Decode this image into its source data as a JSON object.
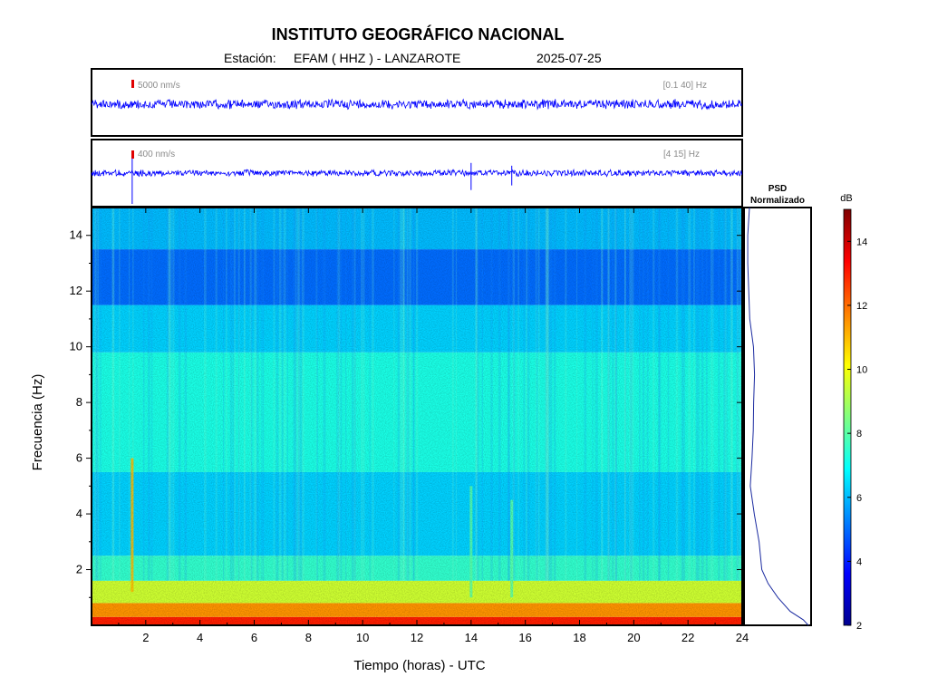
{
  "header": {
    "title": "INSTITUTO GEOGRÁFICO NACIONAL",
    "station_label": "Estación:",
    "station": "EFAM ( HHZ ) - LANZAROTE",
    "date": "2025-07-25"
  },
  "chart_data": {
    "type": "heatmap",
    "title": "INSTITUTO GEOGRÁFICO NACIONAL",
    "xlabel": "Tiempo (horas) - UTC",
    "ylabel": "Frecuencia  (Hz)",
    "xlim": [
      0,
      24
    ],
    "ylim": [
      0,
      15
    ],
    "xticks": [
      2,
      4,
      6,
      8,
      10,
      12,
      14,
      16,
      18,
      20,
      22,
      24
    ],
    "yticks": [
      2,
      4,
      6,
      8,
      10,
      12,
      14
    ],
    "grid": false,
    "colorbar": {
      "label": "dB",
      "range": [
        2,
        15
      ],
      "ticks": [
        2,
        4,
        6,
        8,
        10,
        12,
        14
      ],
      "colormap": [
        "#00008f",
        "#0000ff",
        "#0080ff",
        "#00ffff",
        "#80ff80",
        "#ffff00",
        "#ff8000",
        "#ff0000",
        "#800000"
      ]
    },
    "spectrogram_levels": [
      {
        "freq_from": 0.0,
        "freq_to": 0.3,
        "db": 13.0
      },
      {
        "freq_from": 0.3,
        "freq_to": 0.8,
        "db": 11.5
      },
      {
        "freq_from": 0.8,
        "freq_to": 1.6,
        "db": 9.5
      },
      {
        "freq_from": 1.6,
        "freq_to": 2.5,
        "db": 7.5
      },
      {
        "freq_from": 2.5,
        "freq_to": 5.5,
        "db": 6.3
      },
      {
        "freq_from": 5.5,
        "freq_to": 9.8,
        "db": 7.2
      },
      {
        "freq_from": 9.8,
        "freq_to": 11.5,
        "db": 6.3
      },
      {
        "freq_from": 11.5,
        "freq_to": 13.5,
        "db": 5.0
      },
      {
        "freq_from": 13.5,
        "freq_to": 15.0,
        "db": 6.0
      }
    ],
    "events": [
      {
        "time": 1.5,
        "freq_from": 1.2,
        "freq_to": 6.0,
        "db": 11
      },
      {
        "time": 14.0,
        "freq_from": 1.0,
        "freq_to": 5.0,
        "db": 8
      },
      {
        "time": 15.5,
        "freq_from": 1.0,
        "freq_to": 4.5,
        "db": 8
      }
    ],
    "psd_panel": {
      "title_line1": "PSD",
      "title_line2": "Normalizado",
      "profile": [
        {
          "freq": 0.0,
          "value": 0.98
        },
        {
          "freq": 0.2,
          "value": 0.9
        },
        {
          "freq": 0.5,
          "value": 0.7
        },
        {
          "freq": 1.0,
          "value": 0.5
        },
        {
          "freq": 1.5,
          "value": 0.35
        },
        {
          "freq": 2.0,
          "value": 0.26
        },
        {
          "freq": 3.0,
          "value": 0.2
        },
        {
          "freq": 4.0,
          "value": 0.14
        },
        {
          "freq": 5.0,
          "value": 0.08
        },
        {
          "freq": 6.0,
          "value": 0.1
        },
        {
          "freq": 7.0,
          "value": 0.12
        },
        {
          "freq": 8.0,
          "value": 0.13
        },
        {
          "freq": 9.0,
          "value": 0.14
        },
        {
          "freq": 10.0,
          "value": 0.12
        },
        {
          "freq": 11.0,
          "value": 0.06
        },
        {
          "freq": 12.0,
          "value": 0.04
        },
        {
          "freq": 13.0,
          "value": 0.03
        },
        {
          "freq": 14.0,
          "value": 0.04
        },
        {
          "freq": 15.0,
          "value": 0.05
        }
      ]
    },
    "traces": [
      {
        "scale_label": "5000 nm/s",
        "band_label": "[0.1 40] Hz",
        "spikes": []
      },
      {
        "scale_label": "400 nm/s",
        "band_label": "[4 15] Hz",
        "spikes": [
          {
            "time": 1.5,
            "amp": 1.0
          },
          {
            "time": 14.0,
            "amp": 0.55
          },
          {
            "time": 15.5,
            "amp": 0.4
          }
        ]
      }
    ]
  }
}
